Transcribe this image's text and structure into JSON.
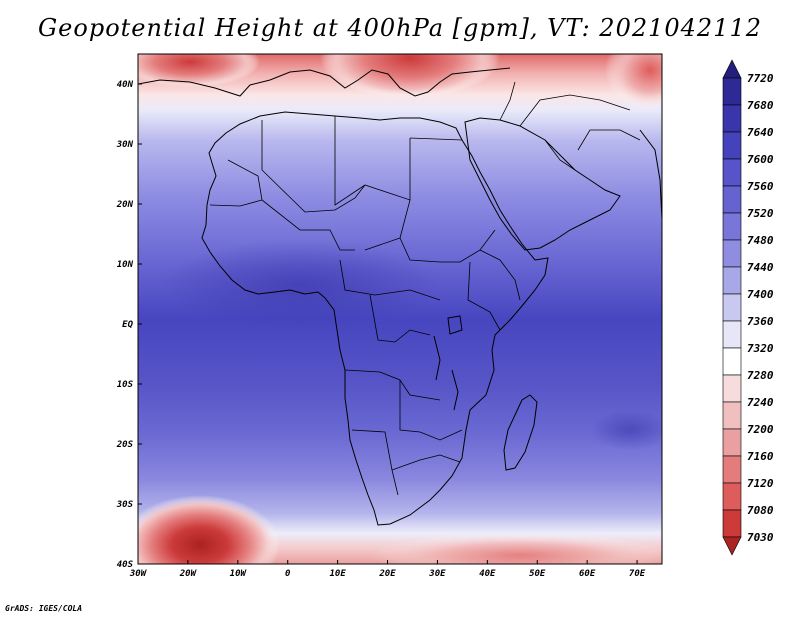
{
  "title": "Geopotential Height at 400hPa [gpm], VT: 2021042112",
  "credit": "GrADS: IGES/COLA",
  "map": {
    "lon_range": [
      -30,
      75
    ],
    "lat_range": [
      -40,
      45
    ],
    "lon_ticks": [
      -30,
      -20,
      -10,
      0,
      10,
      20,
      30,
      40,
      50,
      60,
      70
    ],
    "lon_tick_labels": [
      "30W",
      "20W",
      "10W",
      "0",
      "10E",
      "20E",
      "30E",
      "40E",
      "50E",
      "60E",
      "70E"
    ],
    "lat_ticks": [
      45,
      40,
      30,
      20,
      10,
      0,
      -10,
      -20,
      -30,
      -40
    ],
    "lat_tick_labels": [
      "",
      "40N",
      "30N",
      "20N",
      "10N",
      "EQ",
      "10S",
      "20S",
      "30S",
      "40S"
    ]
  },
  "colorbar": {
    "levels": [
      7720,
      7680,
      7640,
      7600,
      7560,
      7520,
      7480,
      7440,
      7400,
      7360,
      7320,
      7280,
      7240,
      7200,
      7160,
      7120,
      7080,
      7030
    ],
    "labels": [
      "7720",
      "7680",
      "7640",
      "7600",
      "7560",
      "7520",
      "7480",
      "7440",
      "7400",
      "7360",
      "7320",
      "7280",
      "7240",
      "7200",
      "7160",
      "7120",
      "7080",
      "7030"
    ],
    "colors": [
      "#241f7c",
      "#2d2a96",
      "#3836aa",
      "#4443bb",
      "#5654c8",
      "#6563d0",
      "#7876d8",
      "#8e8de0",
      "#a8a8e8",
      "#c8c8f0",
      "#e6e6f8",
      "#ffffff",
      "#f6dcdc",
      "#f0c0c0",
      "#eaa0a0",
      "#e47c7c",
      "#de5c5c",
      "#cc3a3a",
      "#aa2222"
    ]
  }
}
